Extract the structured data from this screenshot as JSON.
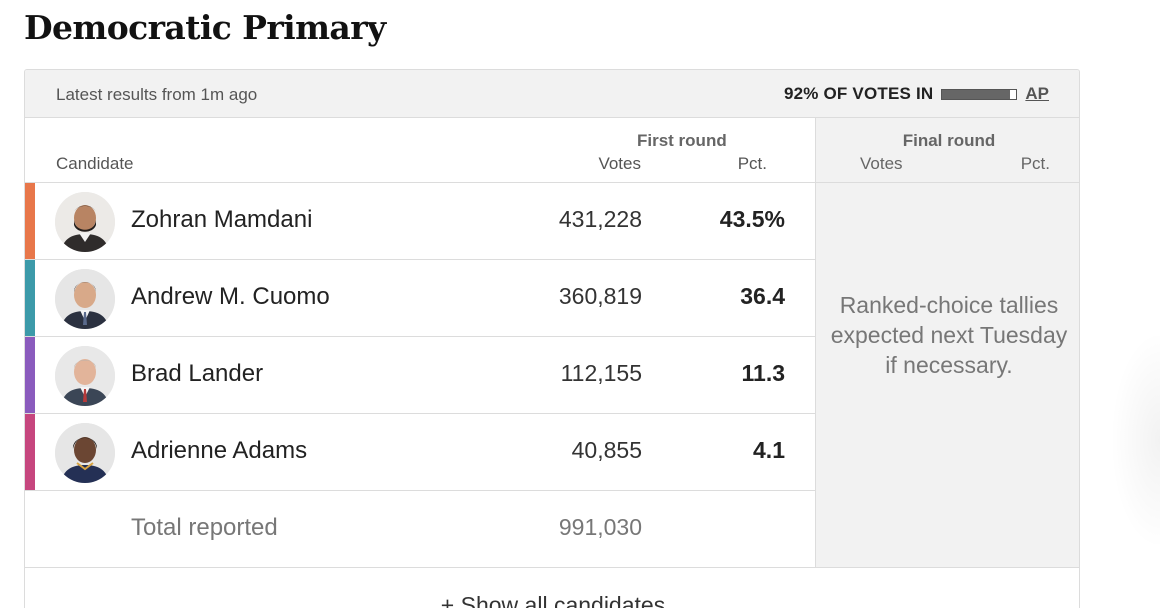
{
  "page": {
    "title": "Democratic Primary"
  },
  "status": {
    "latest": "Latest results from 1m ago",
    "votes_in": "92% OF VOTES IN",
    "votes_in_fraction": 0.92,
    "source": "AP"
  },
  "headers": {
    "candidate": "Candidate",
    "first_round": "First round",
    "final_round": "Final round",
    "votes": "Votes",
    "pct": "Pct."
  },
  "candidates": [
    {
      "name": "Zohran Mamdani",
      "votes": "431,228",
      "pct": "43.5%",
      "color": "#e8774a"
    },
    {
      "name": "Andrew M. Cuomo",
      "votes": "360,819",
      "pct": "36.4",
      "color": "#3c9aa9"
    },
    {
      "name": "Brad Lander",
      "votes": "112,155",
      "pct": "11.3",
      "color": "#8a5bbd"
    },
    {
      "name": "Adrienne Adams",
      "votes": "40,855",
      "pct": "4.1",
      "color": "#c6467e"
    }
  ],
  "total": {
    "label": "Total reported",
    "votes": "991,030"
  },
  "final_note": "Ranked-choice tallies expected next Tuesday if necessary.",
  "show_all": "+ Show all candidates"
}
